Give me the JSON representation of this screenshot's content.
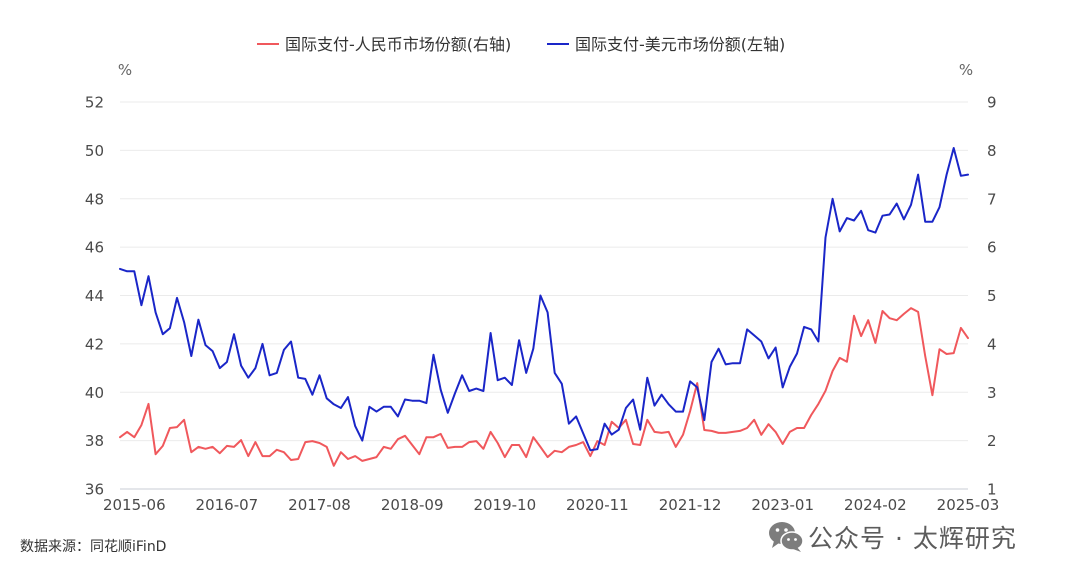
{
  "source_note": "数据来源：同花顺iFinD",
  "watermark": {
    "text": "公众号 · 太辉研究",
    "icon": "wechat-icon"
  },
  "chart_data": {
    "type": "line",
    "legend_position": "top",
    "grid": true,
    "y_left": {
      "unit": "%",
      "ticks": [
        36,
        38,
        40,
        42,
        44,
        46,
        48,
        50,
        52
      ],
      "ylim": [
        36,
        52
      ]
    },
    "y_right": {
      "unit": "%",
      "ticks": [
        1,
        2,
        3,
        4,
        5,
        6,
        7,
        8,
        9
      ],
      "ylim": [
        1,
        9
      ]
    },
    "xticks": [
      "2015-06",
      "2016-07",
      "2017-08",
      "2018-09",
      "2019-10",
      "2020-11",
      "2021-12",
      "2023-01",
      "2024-02",
      "2025-03"
    ],
    "x": [
      "2015-04",
      "2015-05",
      "2015-06",
      "2015-07",
      "2015-08",
      "2015-09",
      "2015-10",
      "2015-11",
      "2015-12",
      "2016-01",
      "2016-02",
      "2016-03",
      "2016-04",
      "2016-05",
      "2016-06",
      "2016-07",
      "2016-08",
      "2016-09",
      "2016-10",
      "2016-11",
      "2016-12",
      "2017-01",
      "2017-02",
      "2017-03",
      "2017-04",
      "2017-05",
      "2017-06",
      "2017-07",
      "2017-08",
      "2017-09",
      "2017-10",
      "2017-11",
      "2017-12",
      "2018-01",
      "2018-02",
      "2018-03",
      "2018-04",
      "2018-05",
      "2018-06",
      "2018-07",
      "2018-08",
      "2018-09",
      "2018-10",
      "2018-11",
      "2018-12",
      "2019-01",
      "2019-02",
      "2019-03",
      "2019-04",
      "2019-05",
      "2019-06",
      "2019-07",
      "2019-08",
      "2019-09",
      "2019-10",
      "2019-11",
      "2019-12",
      "2020-01",
      "2020-02",
      "2020-03",
      "2020-04",
      "2020-05",
      "2020-06",
      "2020-07",
      "2020-08",
      "2020-09",
      "2020-10",
      "2020-11",
      "2020-12",
      "2021-01",
      "2021-02",
      "2021-03",
      "2021-04",
      "2021-05",
      "2021-06",
      "2021-07",
      "2021-08",
      "2021-09",
      "2021-10",
      "2021-11",
      "2021-12",
      "2022-01",
      "2022-02",
      "2022-03",
      "2022-04",
      "2022-05",
      "2022-06",
      "2022-07",
      "2022-08",
      "2022-09",
      "2022-10",
      "2022-11",
      "2022-12",
      "2023-01",
      "2023-02",
      "2023-03",
      "2023-04",
      "2023-05",
      "2023-06",
      "2023-07",
      "2023-08",
      "2023-09",
      "2023-10",
      "2023-11",
      "2023-12",
      "2024-01",
      "2024-02",
      "2024-03",
      "2024-04",
      "2024-05",
      "2024-06",
      "2024-07",
      "2024-08",
      "2024-09",
      "2024-10",
      "2024-11",
      "2024-12",
      "2025-01",
      "2025-02",
      "2025-03"
    ],
    "series": [
      {
        "name": "国际支付-人民币市场份额(右轴)",
        "axis": "right",
        "color": "#f0585c",
        "values": [
          2.07,
          2.18,
          2.07,
          2.32,
          2.76,
          1.72,
          1.89,
          2.26,
          2.28,
          2.43,
          1.76,
          1.87,
          1.83,
          1.87,
          1.74,
          1.89,
          1.87,
          2.01,
          1.68,
          1.97,
          1.68,
          1.68,
          1.81,
          1.76,
          1.6,
          1.62,
          1.97,
          1.99,
          1.95,
          1.87,
          1.48,
          1.76,
          1.62,
          1.68,
          1.58,
          1.62,
          1.66,
          1.87,
          1.83,
          2.03,
          2.1,
          1.91,
          1.72,
          2.07,
          2.07,
          2.14,
          1.85,
          1.87,
          1.87,
          1.97,
          1.99,
          1.83,
          2.18,
          1.95,
          1.66,
          1.91,
          1.91,
          1.66,
          2.07,
          1.87,
          1.66,
          1.79,
          1.76,
          1.87,
          1.91,
          1.97,
          1.68,
          1.99,
          1.91,
          2.39,
          2.26,
          2.43,
          1.93,
          1.91,
          2.43,
          2.18,
          2.16,
          2.18,
          1.87,
          2.12,
          2.61,
          3.19,
          2.22,
          2.2,
          2.16,
          2.16,
          2.18,
          2.2,
          2.26,
          2.43,
          2.12,
          2.34,
          2.18,
          1.93,
          2.18,
          2.26,
          2.26,
          2.53,
          2.76,
          3.03,
          3.44,
          3.71,
          3.63,
          4.58,
          4.16,
          4.49,
          4.02,
          4.68,
          4.53,
          4.49,
          4.62,
          4.74,
          4.66,
          3.75,
          2.94,
          3.89,
          3.79,
          3.81,
          4.33,
          4.12
        ]
      },
      {
        "name": "国际支付-美元市场份额(左轴)",
        "axis": "left",
        "color": "#1a26c8",
        "values": [
          45.1,
          45.0,
          45.0,
          43.6,
          44.8,
          43.3,
          42.4,
          42.65,
          43.9,
          42.9,
          41.5,
          43.0,
          41.95,
          41.7,
          41.0,
          41.25,
          42.4,
          41.1,
          40.6,
          41.0,
          42.0,
          40.7,
          40.8,
          41.75,
          42.1,
          40.6,
          40.55,
          39.9,
          40.7,
          39.75,
          39.5,
          39.35,
          39.8,
          38.6,
          38.0,
          39.4,
          39.2,
          39.4,
          39.4,
          39.0,
          39.7,
          39.65,
          39.65,
          39.55,
          41.55,
          40.1,
          39.15,
          39.95,
          40.7,
          40.05,
          40.15,
          40.05,
          42.45,
          40.5,
          40.6,
          40.3,
          42.15,
          40.8,
          41.8,
          44.0,
          43.3,
          40.8,
          40.35,
          38.7,
          39.0,
          38.3,
          37.6,
          37.65,
          38.7,
          38.25,
          38.45,
          39.35,
          39.7,
          38.45,
          40.6,
          39.45,
          39.9,
          39.5,
          39.2,
          39.2,
          40.45,
          40.2,
          38.85,
          41.25,
          41.8,
          41.15,
          41.2,
          41.2,
          42.6,
          42.35,
          42.1,
          41.4,
          41.85,
          40.2,
          41.05,
          41.6,
          42.7,
          42.6,
          42.1,
          46.4,
          48.0,
          46.65,
          47.2,
          47.1,
          47.5,
          46.7,
          46.6,
          47.3,
          47.35,
          47.8,
          47.15,
          47.75,
          49.0,
          47.05,
          47.05,
          47.65,
          49.0,
          50.1,
          48.95,
          49.0
        ]
      }
    ]
  }
}
